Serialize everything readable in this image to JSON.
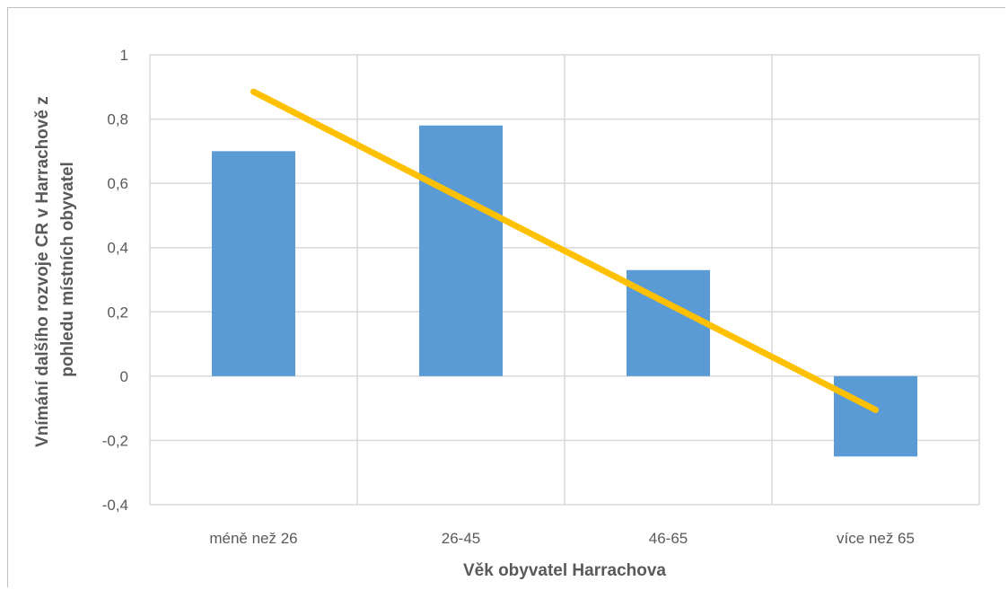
{
  "chart_data": {
    "type": "bar",
    "title": "",
    "categories": [
      "méně než 26",
      "26-45",
      "46-65",
      "více než 65"
    ],
    "series": [
      {
        "values": [
          0.7,
          0.78,
          0.33,
          -0.25
        ],
        "color": "#5b9bd5"
      }
    ],
    "trendline": {
      "type": "linear",
      "color": "#ffc000",
      "start": 0.885,
      "end": -0.105
    },
    "xlabel": "Věk obyvatel Harrachova",
    "ylabel_lines": [
      "Vnímání dalšího rozvoje CR v Harrachově z",
      "pohledu místních obyvatel"
    ],
    "ylim": [
      -0.4,
      1
    ],
    "yticks": [
      1,
      0.8,
      0.6,
      0.4,
      0.2,
      0,
      -0.2,
      -0.4
    ],
    "ytick_labels": [
      "1",
      "0,8",
      "0,6",
      "0,4",
      "0,2",
      "0",
      "-0,2",
      "-0,4"
    ],
    "grid": true,
    "legend": "none"
  }
}
